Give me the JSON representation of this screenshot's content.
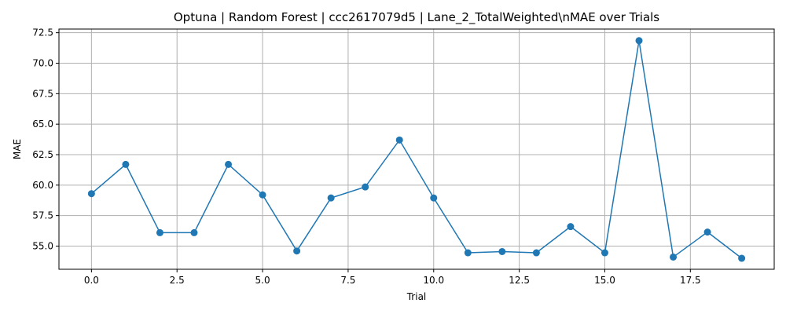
{
  "chart_data": {
    "type": "line",
    "title": "Optuna | Random Forest | ccc2617079d5 | Lane_2_TotalWeighted\\nMAE over Trials",
    "xlabel": "Trial",
    "ylabel": "MAE",
    "xlim": [
      -0.95,
      19.95
    ],
    "ylim": [
      53.1,
      72.8
    ],
    "xticks": [
      0,
      2.5,
      5,
      7.5,
      10,
      12.5,
      15,
      17.5
    ],
    "xtick_labels": [
      "0.0",
      "2.5",
      "5.0",
      "7.5",
      "10.0",
      "12.5",
      "15.0",
      "17.5"
    ],
    "yticks": [
      55,
      57.5,
      60,
      62.5,
      65,
      67.5,
      70,
      72.5
    ],
    "ytick_labels": [
      "55.0",
      "57.5",
      "60.0",
      "62.5",
      "65.0",
      "67.5",
      "70.0",
      "72.5"
    ],
    "grid": true,
    "color": "#1f77b4",
    "series": [
      {
        "x": [
          0,
          1,
          2,
          3,
          4,
          5,
          6,
          7,
          8,
          9,
          10,
          11,
          12,
          13,
          14,
          15,
          16,
          17,
          18,
          19
        ],
        "values": [
          59.3,
          61.7,
          56.1,
          56.1,
          61.7,
          59.2,
          54.6,
          58.95,
          59.85,
          63.7,
          58.95,
          54.45,
          54.55,
          54.45,
          56.6,
          54.45,
          71.85,
          54.1,
          56.15,
          54.0
        ]
      }
    ]
  }
}
